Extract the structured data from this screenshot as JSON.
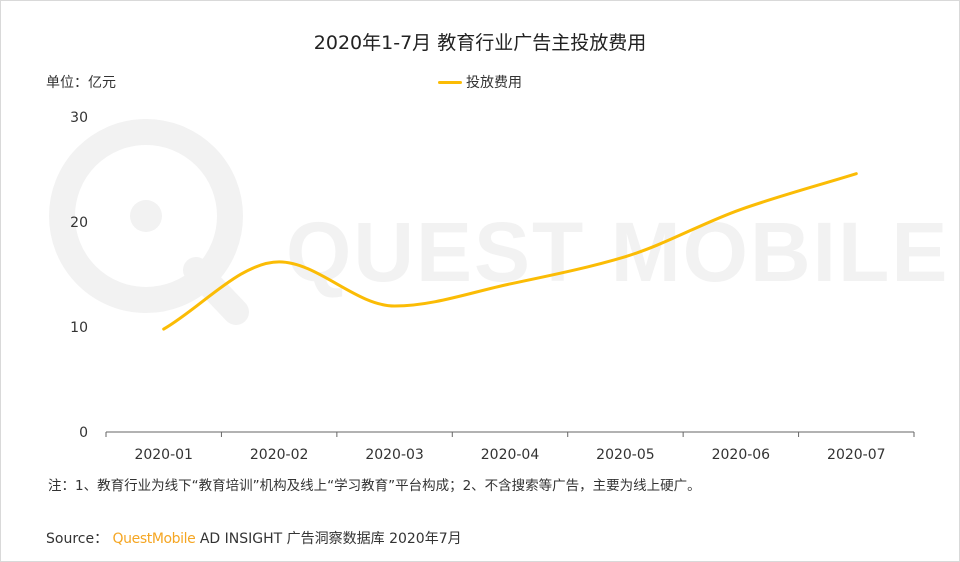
{
  "header": {
    "title": "2020年1-7月 教育行业广告主投放费用",
    "unit": "单位：亿元"
  },
  "colors": {
    "series": "#FBBC05",
    "axis": "#333333",
    "watermark": "#f2f2f2",
    "brand": "#F5A623"
  },
  "watermark": {
    "logo": "questmobile-logo",
    "text": "QUEST MOBILE"
  },
  "chart_data": {
    "type": "line",
    "categories": [
      "2020-01",
      "2020-02",
      "2020-03",
      "2020-04",
      "2020-05",
      "2020-06",
      "2020-07"
    ],
    "series": [
      {
        "name": "投放费用",
        "values": [
          9.8,
          16.2,
          12.0,
          14.1,
          16.7,
          21.2,
          24.6
        ]
      }
    ],
    "yticks": [
      0,
      10,
      20,
      30
    ],
    "ylim": [
      0,
      30
    ],
    "grid": false,
    "smooth": true,
    "legend_position": "top-center"
  },
  "footer": {
    "note": "注：1、教育行业为线下“教育培训”机构及线上“学习教育”平台构成；2、不含搜索等广告，主要为线上硬广。",
    "source_label": "Source：",
    "source_brand": "QuestMobile",
    "source_rest": "AD INSIGHT 广告洞察数据库 2020年7月"
  }
}
